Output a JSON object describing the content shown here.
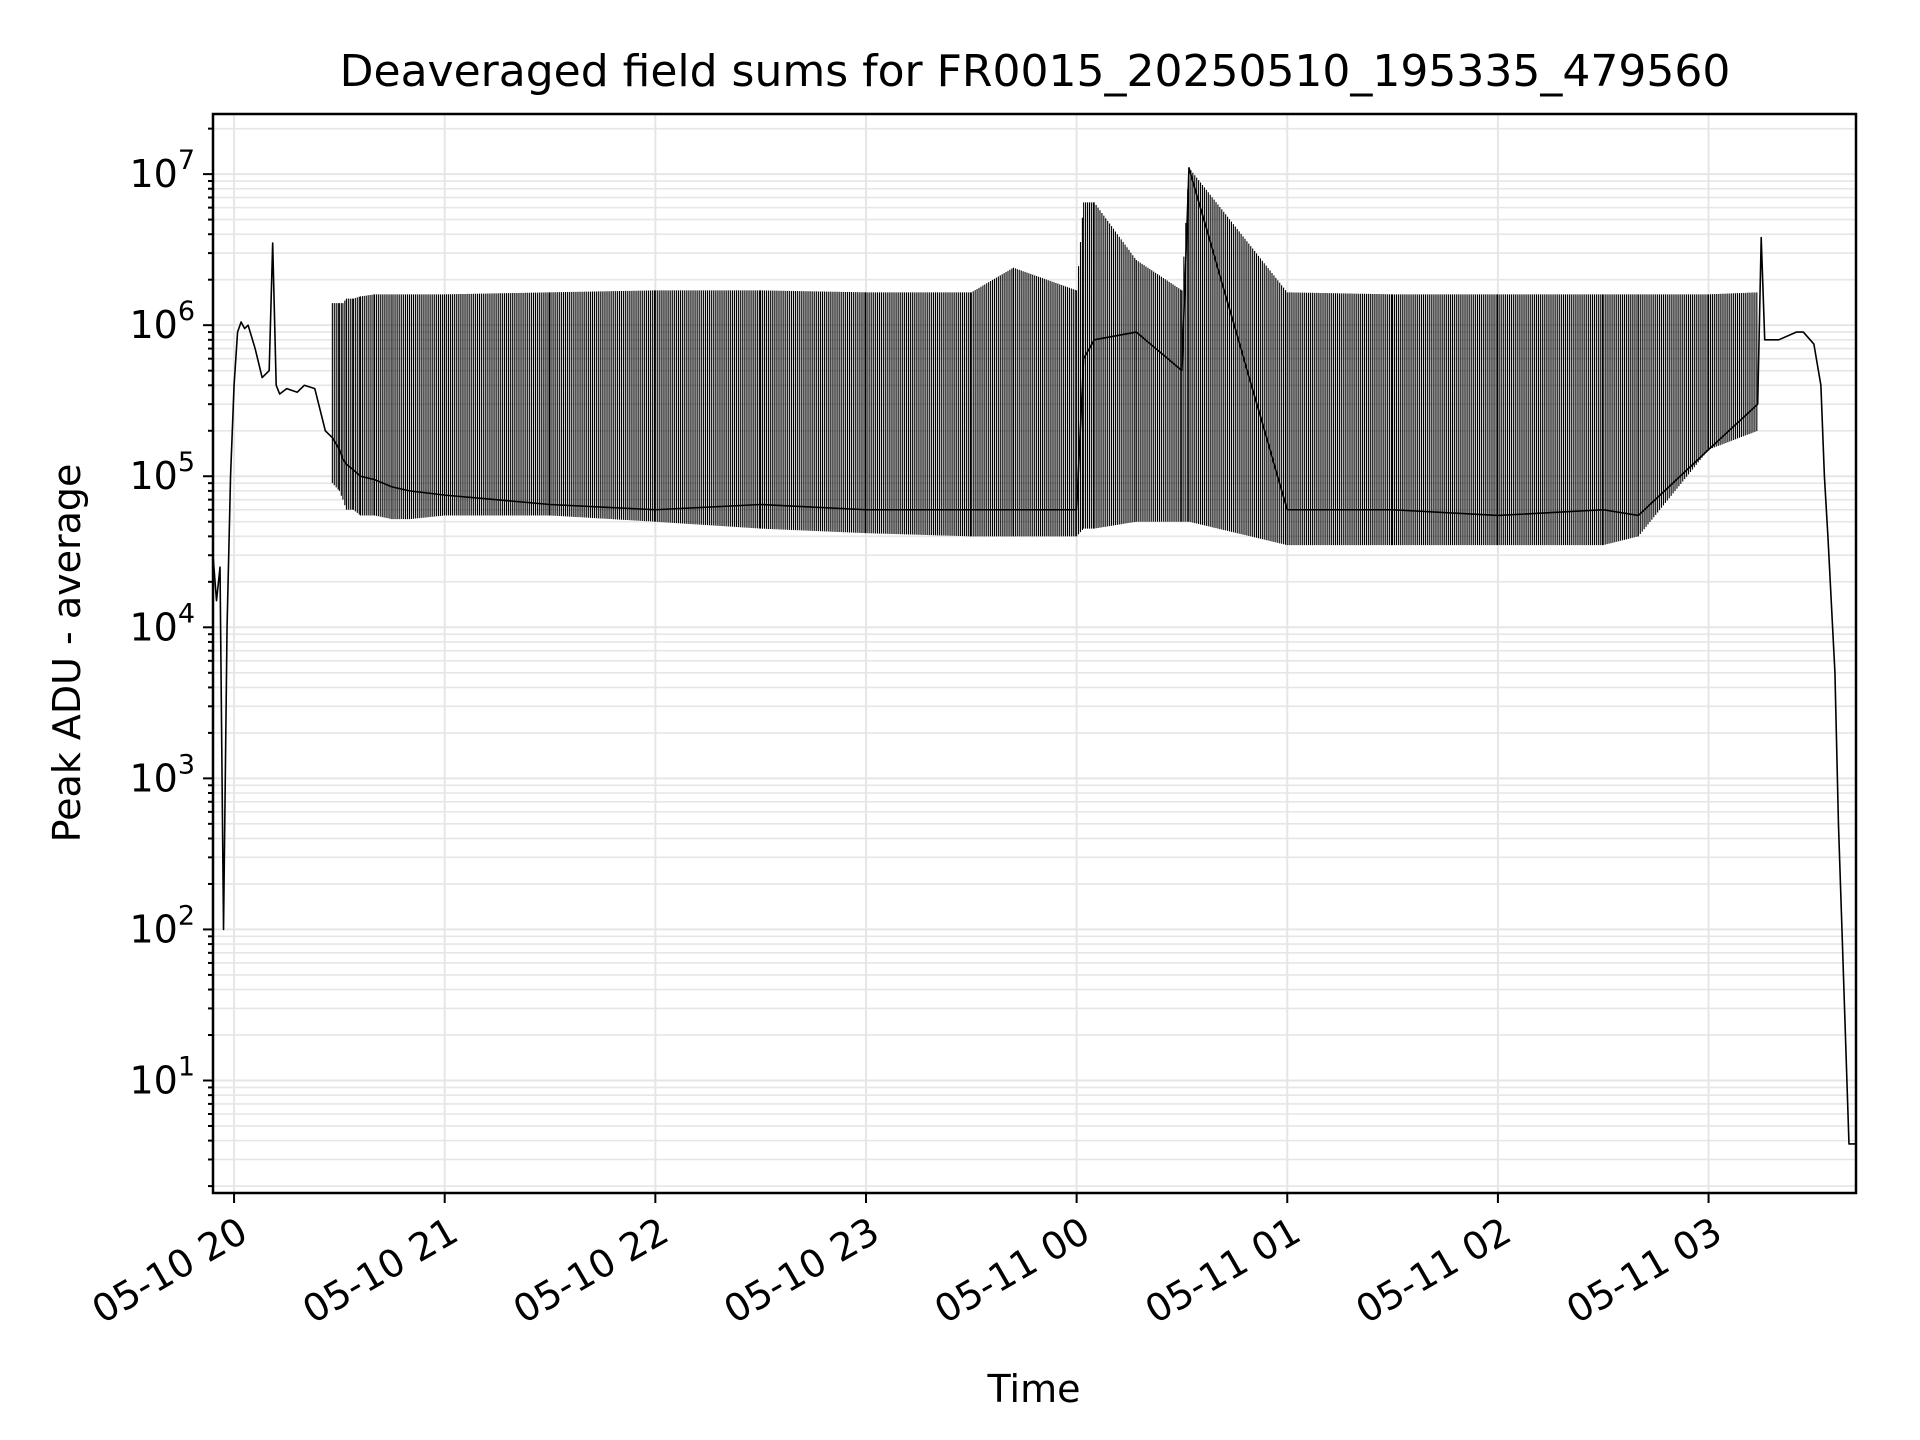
{
  "chart_data": {
    "type": "line",
    "title": "Deaveraged field sums for FR0015_20250510_195335_479560",
    "xlabel": "Time",
    "ylabel": "Peak ADU - average",
    "yscale": "log",
    "ylim": [
      1.8,
      25000000
    ],
    "xlim": [
      "05-10 19:54",
      "05-11 03:42"
    ],
    "grid": true,
    "x_ticks": [
      "05-10 20",
      "05-10 21",
      "05-10 22",
      "05-10 23",
      "05-11 00",
      "05-11 01",
      "05-11 02",
      "05-11 03"
    ],
    "y_ticks": [
      {
        "base": "10",
        "exp": "1",
        "value": 10
      },
      {
        "base": "10",
        "exp": "2",
        "value": 100
      },
      {
        "base": "10",
        "exp": "3",
        "value": 1000
      },
      {
        "base": "10",
        "exp": "4",
        "value": 10000
      },
      {
        "base": "10",
        "exp": "5",
        "value": 100000
      },
      {
        "base": "10",
        "exp": "6",
        "value": 1000000
      },
      {
        "base": "10",
        "exp": "7",
        "value": 10000000
      }
    ],
    "line_color": "#000000",
    "grid_color": "#e6e6e6",
    "series": [
      {
        "x": [
          "05-10 19:54",
          "05-10 19:55",
          "05-10 19:56",
          "05-10 19:57",
          "05-10 19:58",
          "05-10 19:59",
          "05-10 20:00",
          "05-10 20:01",
          "05-10 20:02",
          "05-10 20:03",
          "05-10 20:04",
          "05-10 20:06",
          "05-10 20:08",
          "05-10 20:10",
          "05-10 20:11",
          "05-10 20:12",
          "05-10 20:13",
          "05-10 20:15",
          "05-10 20:18",
          "05-10 20:20",
          "05-10 20:23",
          "05-10 20:26",
          "05-10 20:28",
          "05-10 20:30",
          "05-10 20:31",
          "05-10 20:32",
          "05-10 20:34",
          "05-10 20:36",
          "05-10 20:40",
          "05-10 20:45",
          "05-10 20:50",
          "05-10 21:00",
          "05-10 21:30",
          "05-10 22:00",
          "05-10 22:30",
          "05-10 23:00",
          "05-10 23:30",
          "05-10 23:42",
          "05-11 00:00",
          "05-11 00:02",
          "05-11 00:05",
          "05-11 00:17",
          "05-11 00:30",
          "05-11 00:32",
          "05-11 01:00",
          "05-11 01:30",
          "05-11 02:00",
          "05-11 02:30",
          "05-11 02:40",
          "05-11 03:00",
          "05-11 03:14",
          "05-11 03:15",
          "05-11 03:16",
          "05-11 03:20",
          "05-11 03:25",
          "05-11 03:27",
          "05-11 03:30",
          "05-11 03:32",
          "05-11 03:33",
          "05-11 03:34",
          "05-11 03:36",
          "05-11 03:37",
          "05-11 03:38",
          "05-11 03:40",
          "05-11 03:42"
        ],
        "y": [
          30000,
          15000,
          25000,
          100,
          10000,
          100000,
          400000,
          900000,
          1050000,
          950000,
          1000000,
          700000,
          450000,
          500000,
          3500000,
          400000,
          350000,
          380000,
          360000,
          400000,
          380000,
          200000,
          180000,
          150000,
          130000,
          120000,
          110000,
          100000,
          95000,
          85000,
          80000,
          75000,
          65000,
          60000,
          65000,
          60000,
          60000,
          60000,
          60000,
          600000,
          800000,
          900000,
          500000,
          11000000,
          60000,
          60000,
          55000,
          60000,
          55000,
          150000,
          300000,
          3800000,
          800000,
          800000,
          900000,
          900000,
          750000,
          400000,
          100000,
          40000,
          5000,
          500,
          100,
          3.8,
          3.8
        ],
        "upper_y": [
          null,
          null,
          null,
          null,
          null,
          null,
          null,
          null,
          null,
          null,
          null,
          null,
          null,
          null,
          null,
          null,
          null,
          null,
          null,
          null,
          null,
          null,
          1400000,
          1400000,
          1400000,
          1500000,
          1500000,
          1550000,
          1600000,
          1600000,
          1600000,
          1600000,
          1650000,
          1700000,
          1700000,
          1650000,
          1650000,
          2400000,
          1700000,
          6500000,
          6500000,
          2700000,
          1700000,
          11000000,
          1650000,
          1600000,
          1600000,
          1600000,
          1600000,
          1600000,
          1650000,
          null,
          null,
          null,
          null,
          null,
          null,
          null,
          null,
          null,
          null,
          null,
          null,
          null,
          null
        ],
        "lower_y": [
          null,
          null,
          null,
          null,
          null,
          null,
          null,
          null,
          null,
          null,
          null,
          null,
          null,
          null,
          null,
          null,
          null,
          null,
          null,
          null,
          null,
          null,
          90000,
          80000,
          70000,
          60000,
          60000,
          55000,
          55000,
          52000,
          52000,
          55000,
          55000,
          50000,
          45000,
          42000,
          40000,
          40000,
          40000,
          45000,
          45000,
          50000,
          50000,
          50000,
          35000,
          35000,
          35000,
          35000,
          40000,
          150000,
          200000,
          null,
          null,
          null,
          null,
          null,
          null,
          null,
          null,
          null,
          null,
          null,
          null,
          null,
          null
        ]
      }
    ]
  }
}
